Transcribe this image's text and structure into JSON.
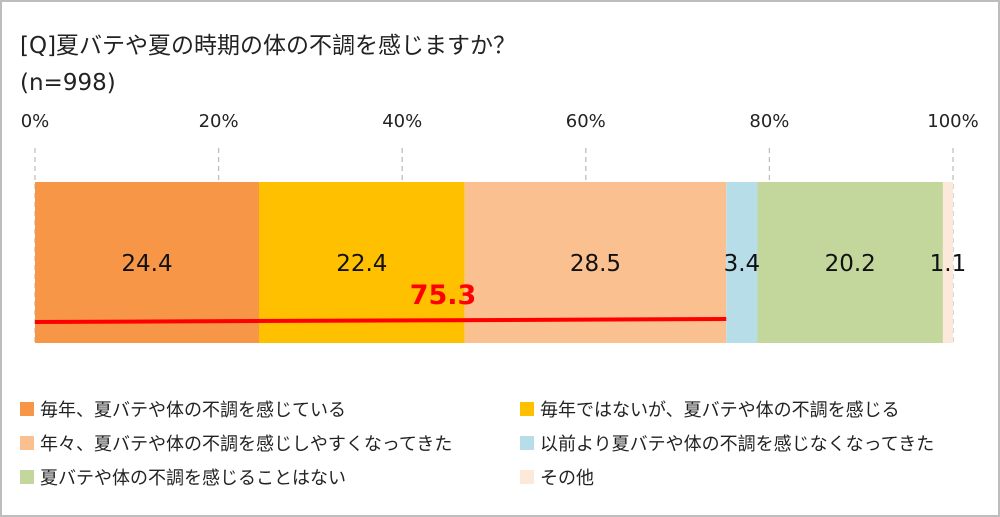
{
  "chart_data": {
    "type": "bar",
    "orientation": "horizontal-stacked-100",
    "title": "[Q]夏バテや夏の時期の体の不調を感じますか？",
    "subtitle": "(n=998)",
    "xlim": [
      0,
      100
    ],
    "x_ticks": [
      "0%",
      "20%",
      "40%",
      "60%",
      "80%",
      "100%"
    ],
    "grid": true,
    "legend_placement": "bottom",
    "series": [
      {
        "name": "毎年、夏バテや体の不調を感じている",
        "value": 24.4,
        "label": "24.4",
        "color": "#f79646"
      },
      {
        "name": "毎年ではないが、夏バテや体の不調を感じる",
        "value": 22.4,
        "label": "22.4",
        "color": "#ffc000"
      },
      {
        "name": "年々、夏バテや体の不調を感じしやすくなってきた",
        "value": 28.5,
        "label": "28.5",
        "color": "#fac090"
      },
      {
        "name": "以前より夏バテや体の不調を感じなくなってきた",
        "value": 3.4,
        "label": "3.4",
        "color": "#b7dde8"
      },
      {
        "name": "夏バテや体の不調を感じることはない",
        "value": 20.2,
        "label": "20.2",
        "color": "#c3d69b"
      },
      {
        "name": "その他",
        "value": 1.1,
        "label": "1.1",
        "color": "#fde9d9"
      }
    ],
    "annotation": {
      "text": "75.3",
      "value": 75.3,
      "color": "#ff0000"
    }
  }
}
